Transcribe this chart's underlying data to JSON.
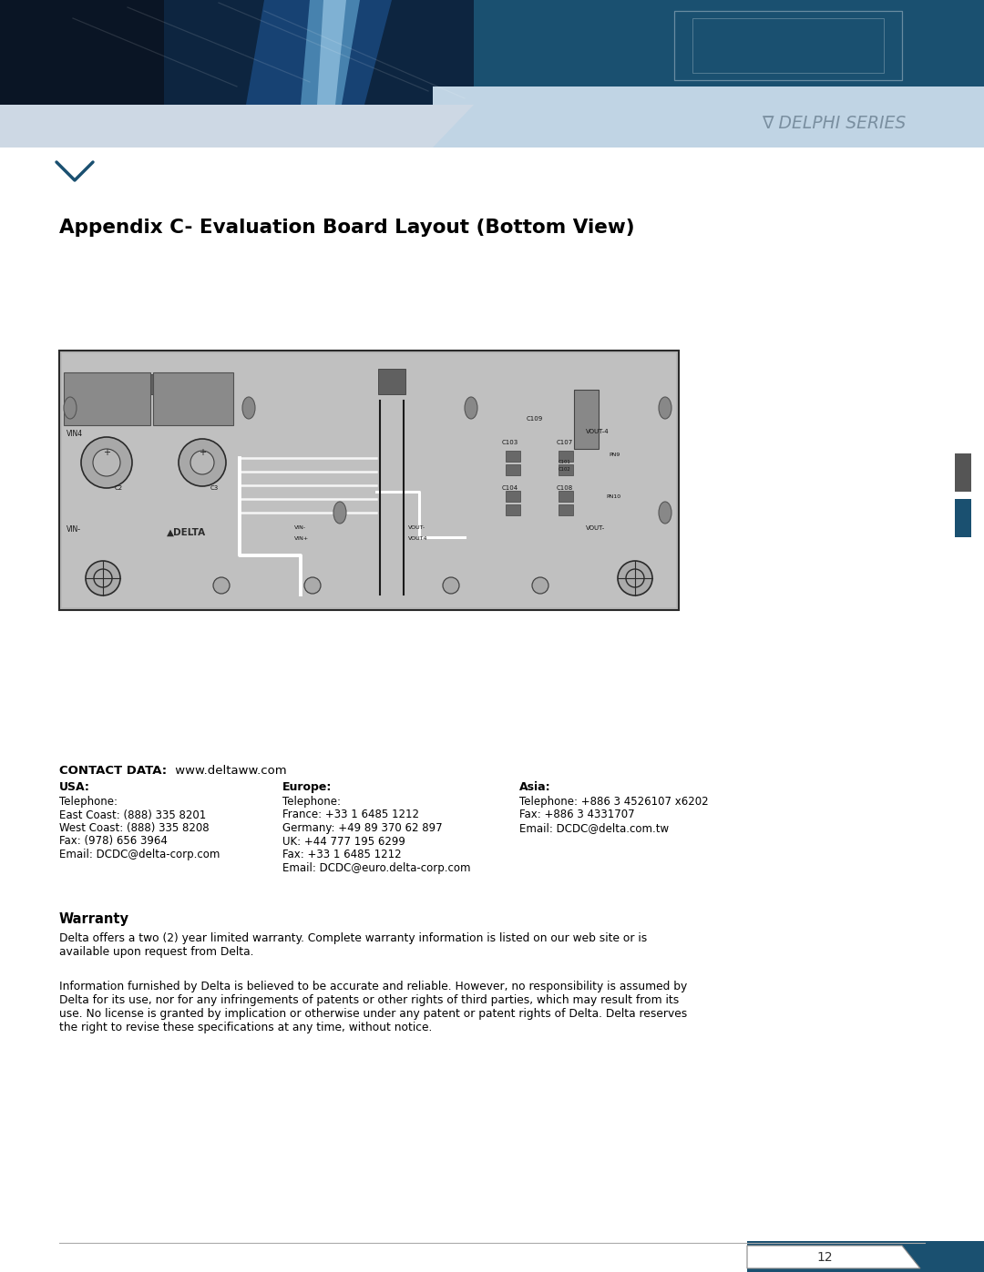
{
  "title": "Appendix C- Evaluation Board Layout (Bottom View)",
  "bg_color": "#ffffff",
  "delphi_text": "∇ DELPHI SERIES",
  "contact_title_bold": "CONTACT DATA:",
  "contact_title_normal": " www.deltaww.com",
  "usa_header": "USA:",
  "usa_lines": [
    "Telephone:",
    "East Coast: (888) 335 8201",
    "West Coast: (888) 335 8208",
    "Fax: (978) 656 3964",
    "Email: DCDC@delta-corp.com"
  ],
  "europe_header": "Europe:",
  "europe_lines": [
    "Telephone:",
    "France: +33 1 6485 1212",
    "Germany: +49 89 370 62 897",
    "UK: +44 777 195 6299",
    "Fax: +33 1 6485 1212",
    "Email: DCDC@euro.delta-corp.com"
  ],
  "asia_header": "Asia:",
  "asia_lines": [
    "Telephone: +886 3 4526107 x6202",
    "Fax: +886 3 4331707",
    "Email: DCDC@delta.com.tw"
  ],
  "warranty_header": "Warranty",
  "warranty_text1": "Delta offers a two (2) year limited warranty. Complete warranty information is listed on our web site or is\navailable upon request from Delta.",
  "warranty_text2": "Information furnished by Delta is believed to be accurate and reliable. However, no responsibility is assumed by\nDelta for its use, nor for any infringements of patents or other rights of third parties, which may result from its\nuse. No license is granted by implication or otherwise under any patent or patent rights of Delta. Delta reserves\nthe right to revise these specifications at any time, without notice.",
  "page_number": "12",
  "sidebar_color1": "#555555",
  "sidebar_color2": "#1a5070"
}
